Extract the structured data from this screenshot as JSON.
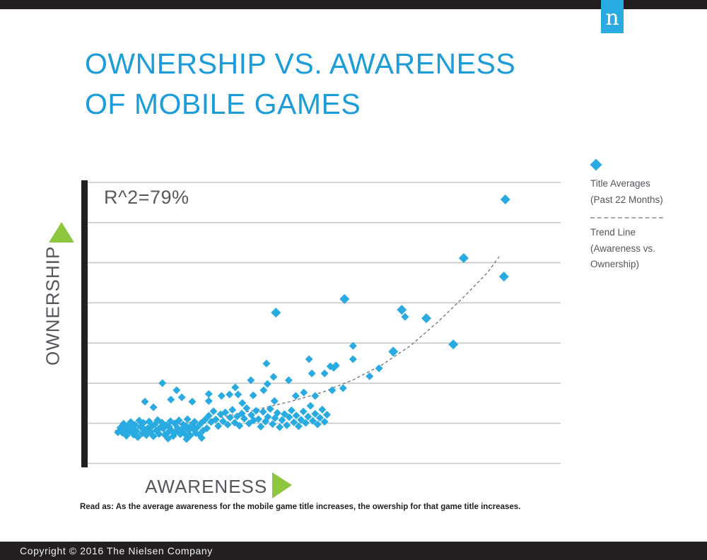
{
  "header": {
    "top_bar_color": "#231F20",
    "logo_letter": "n",
    "logo_color": "#29ABE2"
  },
  "title": {
    "line1": "OWNERSHIP VS. AWARENESS",
    "line2": "OF MOBILE GAMES",
    "color": "#1C9DD9"
  },
  "chart_data": {
    "type": "scatter",
    "title": "Ownership vs. Awareness of Mobile Games",
    "xlabel": "AWARENESS",
    "ylabel": "OWNERSHIP",
    "annotation": "R^2=79%",
    "axis_note": "axes are unlabeled in source; point values normalized 0-100 of plot span",
    "xlim": [
      0,
      100
    ],
    "ylim": [
      0,
      100
    ],
    "layout_hints": {
      "grid": "on",
      "horizontal_gridlines": 8,
      "gridline_color": "#C7C8CA",
      "axis_bar_color": "#231F20",
      "legend_position": "right",
      "background": "#FFFFFF",
      "arrow_color": "#8DC63F"
    },
    "series": [
      {
        "name": "Title Averages (Past 22 Months)",
        "marker": "diamond",
        "color": "#29ABE2",
        "points": [
          [
            6.4,
            11.6
          ],
          [
            6.9,
            13.2
          ],
          [
            7.3,
            11.5
          ],
          [
            7.6,
            14.6
          ],
          [
            7.9,
            12.3
          ],
          [
            8.2,
            10.4
          ],
          [
            8.5,
            13.9
          ],
          [
            8.8,
            11.9
          ],
          [
            9.1,
            15.2
          ],
          [
            9.4,
            12.7
          ],
          [
            9.7,
            10.8
          ],
          [
            10.0,
            14.2
          ],
          [
            10.3,
            12.0
          ],
          [
            10.6,
            9.9
          ],
          [
            10.9,
            15.7
          ],
          [
            11.2,
            13.5
          ],
          [
            11.5,
            11.2
          ],
          [
            11.8,
            14.9
          ],
          [
            12.1,
            12.5
          ],
          [
            12.4,
            10.6
          ],
          [
            12.7,
            13.0
          ],
          [
            13.0,
            15.4
          ],
          [
            13.3,
            11.7
          ],
          [
            13.6,
            13.7
          ],
          [
            13.9,
            10.2
          ],
          [
            14.2,
            14.4
          ],
          [
            14.5,
            12.2
          ],
          [
            14.8,
            15.9
          ],
          [
            15.1,
            11.0
          ],
          [
            15.4,
            13.3
          ],
          [
            15.7,
            15.0
          ],
          [
            16.0,
            12.9
          ],
          [
            16.3,
            10.7
          ],
          [
            16.6,
            14.1
          ],
          [
            16.9,
            11.4
          ],
          [
            17.2,
            13.6
          ],
          [
            17.5,
            15.5
          ],
          [
            17.8,
            12.1
          ],
          [
            18.1,
            10.3
          ],
          [
            18.4,
            14.7
          ],
          [
            18.7,
            11.8
          ],
          [
            19.0,
            13.1
          ],
          [
            19.3,
            15.8
          ],
          [
            19.6,
            10.9
          ],
          [
            19.9,
            12.6
          ],
          [
            20.2,
            14.3
          ],
          [
            20.5,
            11.1
          ],
          [
            20.8,
            13.8
          ],
          [
            21.1,
            16.2
          ],
          [
            21.4,
            12.4
          ],
          [
            21.7,
            10.5
          ],
          [
            22.0,
            14.0
          ],
          [
            22.3,
            12.8
          ],
          [
            22.6,
            15.3
          ],
          [
            22.9,
            11.3
          ],
          [
            23.2,
            13.4
          ],
          [
            23.6,
            10.8
          ],
          [
            24.0,
            14.8
          ],
          [
            24.4,
            12.2
          ],
          [
            24.8,
            16.0
          ],
          [
            25.2,
            13.0
          ],
          [
            17.0,
            9.4
          ],
          [
            20.9,
            9.2
          ],
          [
            24.1,
            9.6
          ],
          [
            25.6,
            17.4
          ],
          [
            26.1,
            15.2
          ],
          [
            26.6,
            19.0
          ],
          [
            27.1,
            16.1
          ],
          [
            27.6,
            13.8
          ],
          [
            28.1,
            17.9
          ],
          [
            28.6,
            15.5
          ],
          [
            29.1,
            18.6
          ],
          [
            29.6,
            14.3
          ],
          [
            30.1,
            16.8
          ],
          [
            30.6,
            19.5
          ],
          [
            31.1,
            15.0
          ],
          [
            31.6,
            17.2
          ],
          [
            32.1,
            13.9
          ],
          [
            32.6,
            18.2
          ],
          [
            33.1,
            16.4
          ],
          [
            33.6,
            20.1
          ],
          [
            34.1,
            14.7
          ],
          [
            34.6,
            17.7
          ],
          [
            35.1,
            15.8
          ],
          [
            35.6,
            19.2
          ],
          [
            36.1,
            16.2
          ],
          [
            36.6,
            13.6
          ],
          [
            37.1,
            18.8
          ],
          [
            37.6,
            15.4
          ],
          [
            38.1,
            17.0
          ],
          [
            38.6,
            19.8
          ],
          [
            39.1,
            14.5
          ],
          [
            39.6,
            16.6
          ],
          [
            40.1,
            18.4
          ],
          [
            40.6,
            13.4
          ],
          [
            41.1,
            15.9
          ],
          [
            41.6,
            18.0
          ],
          [
            42.1,
            14.1
          ],
          [
            42.6,
            16.9
          ],
          [
            43.1,
            19.3
          ],
          [
            43.6,
            15.1
          ],
          [
            44.1,
            17.5
          ],
          [
            44.6,
            13.7
          ],
          [
            45.1,
            16.0
          ],
          [
            45.6,
            18.9
          ],
          [
            46.1,
            14.9
          ],
          [
            46.6,
            17.1
          ],
          [
            47.1,
            20.9
          ],
          [
            47.6,
            15.6
          ],
          [
            48.1,
            18.1
          ],
          [
            48.6,
            14.4
          ],
          [
            49.1,
            16.7
          ],
          [
            49.6,
            19.6
          ],
          [
            50.1,
            15.3
          ],
          [
            50.6,
            17.8
          ],
          [
            12.1,
            22.4
          ],
          [
            13.9,
            20.4
          ],
          [
            17.6,
            23.1
          ],
          [
            18.8,
            26.4
          ],
          [
            19.9,
            23.9
          ],
          [
            22.1,
            22.4
          ],
          [
            25.6,
            25.1
          ],
          [
            25.6,
            22.6
          ],
          [
            28.3,
            24.4
          ],
          [
            30.0,
            24.9
          ],
          [
            31.2,
            27.4
          ],
          [
            31.8,
            24.9
          ],
          [
            32.7,
            21.9
          ],
          [
            34.5,
            29.9
          ],
          [
            35.0,
            24.6
          ],
          [
            37.2,
            26.4
          ],
          [
            38.0,
            28.6
          ],
          [
            39.3,
            31.1
          ],
          [
            39.5,
            22.6
          ],
          [
            42.5,
            29.9
          ],
          [
            44.0,
            24.4
          ],
          [
            45.7,
            25.6
          ],
          [
            48.1,
            24.4
          ],
          [
            15.8,
            28.9
          ],
          [
            37.8,
            35.8
          ],
          [
            46.8,
            37.3
          ],
          [
            47.4,
            32.3
          ],
          [
            50.1,
            32.3
          ],
          [
            51.3,
            34.8
          ],
          [
            52.5,
            35.1
          ],
          [
            52.0,
            34.3
          ],
          [
            51.7,
            26.4
          ],
          [
            54.0,
            27.1
          ],
          [
            56.1,
            42.0
          ],
          [
            56.1,
            37.3
          ],
          [
            59.6,
            31.3
          ],
          [
            61.6,
            34.1
          ],
          [
            67.1,
            52.2
          ]
        ],
        "emphasis_points": [
          [
            88.3,
            93.5
          ],
          [
            79.5,
            72.9
          ],
          [
            88.0,
            66.4
          ],
          [
            77.3,
            42.5
          ],
          [
            71.6,
            51.7
          ],
          [
            66.4,
            54.7
          ],
          [
            54.3,
            58.5
          ],
          [
            64.6,
            40.0
          ],
          [
            39.8,
            53.7
          ]
        ]
      }
    ],
    "trend": {
      "name": "Trend Line (Awareness vs. Ownership)",
      "style": "dashed",
      "color": "#77787B",
      "points": [
        [
          5.8,
          12.2
        ],
        [
          12.9,
          13.4
        ],
        [
          20.3,
          14.7
        ],
        [
          27.8,
          16.7
        ],
        [
          35.3,
          19.4
        ],
        [
          42.8,
          22.4
        ],
        [
          49.5,
          25.6
        ],
        [
          56.2,
          30.1
        ],
        [
          62.2,
          35.3
        ],
        [
          68.2,
          42.0
        ],
        [
          74.1,
          50.5
        ],
        [
          80.1,
          60.2
        ],
        [
          84.6,
          67.9
        ],
        [
          87.0,
          73.4
        ]
      ]
    }
  },
  "annotation": {
    "r_squared": "R^2=79%"
  },
  "axes": {
    "x_label": "AWARENESS",
    "y_label": "OWNERSHIP"
  },
  "legend": {
    "item1_line1": "Title Averages",
    "item1_line2": "(Past 22 Months)",
    "item2_line1": "Trend Line",
    "item2_line2": "(Awareness vs.",
    "item2_line3": "Ownership)"
  },
  "read_as": "Read as: As the average awareness for the mobile game title increases, the owership for that game title increases.",
  "footer": {
    "text": "Copyright © 2016 The Nielsen Company"
  }
}
